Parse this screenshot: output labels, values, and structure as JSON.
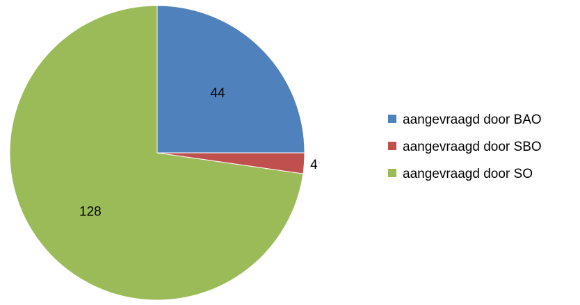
{
  "chart_data": {
    "type": "pie",
    "categories": [
      "aangevraagd door BAO",
      "aangevraagd door SBO",
      "aangevraagd door SO"
    ],
    "values": [
      44,
      4,
      128
    ],
    "colors": [
      "#4F81BD",
      "#C0504D",
      "#9BBB59"
    ],
    "data_labels": [
      "44",
      "4",
      "128"
    ],
    "start_angle_deg": 0,
    "direction": "clockwise",
    "legend_position": "right"
  }
}
